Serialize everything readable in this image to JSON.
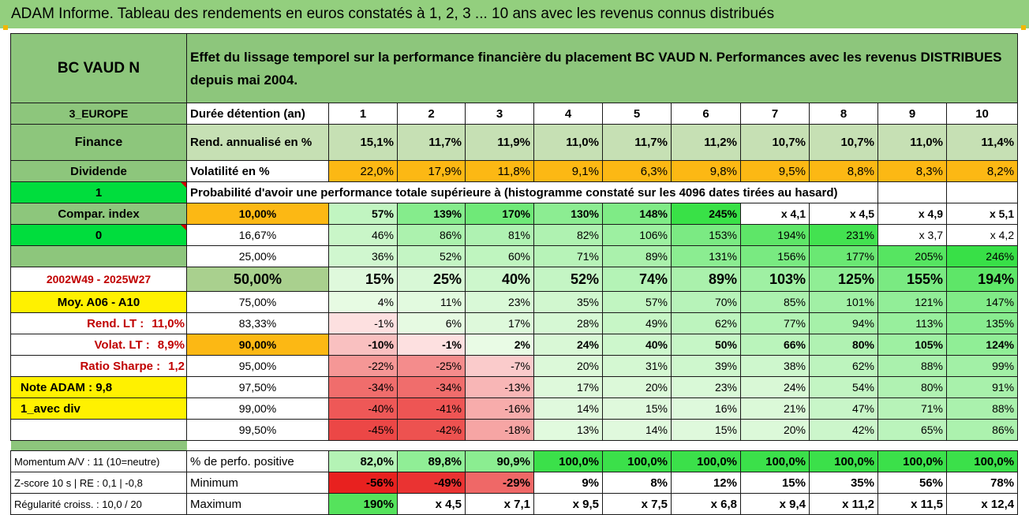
{
  "banner": "ADAM Informe. Tableau des rendements en euros constatés à 1, 2, 3 ... 10 ans avec les revenus connus distribués",
  "fund_name": "BC VAUD N",
  "description": "Effet du lissage temporel sur la performance financière du placement BC VAUD N. Performances avec les revenus DISTRIBUES depuis mai 2004.",
  "years": [
    "1",
    "2",
    "3",
    "4",
    "5",
    "6",
    "7",
    "8",
    "9",
    "10"
  ],
  "side_labels": {
    "region": "3_EUROPE",
    "sector": "Finance",
    "dividend": "Dividende",
    "flag1": "1",
    "compar": "Compar. index",
    "flag0": "0",
    "period": "2002W49 - 2025W27",
    "moy": "Moy. A06 - A10",
    "rend_lt_label": "Rend. LT :",
    "rend_lt_value": "11,0%",
    "volat_lt_label": "Volat. LT :",
    "volat_lt_value": "8,9%",
    "sharpe_label": "Ratio Sharpe :",
    "sharpe_value": "1,2",
    "note": "Note ADAM : 9,8",
    "div_note": "1_avec div"
  },
  "duree_label": "Durée détention (an)",
  "rend": {
    "label": "Rend. annualisé en %",
    "values": [
      "15,1%",
      "11,7%",
      "11,9%",
      "11,0%",
      "11,7%",
      "11,2%",
      "10,7%",
      "10,7%",
      "11,0%",
      "11,4%"
    ]
  },
  "vol": {
    "label": "Volatilité en %",
    "values": [
      "22,0%",
      "17,9%",
      "11,8%",
      "9,1%",
      "6,3%",
      "9,8%",
      "9,5%",
      "8,8%",
      "8,3%",
      "8,2%"
    ]
  },
  "prob_title": "Probabilité d'avoir une performance totale supérieure à (histogramme constaté sur les 4096 dates tirées au hasard)",
  "quantiles": [
    {
      "label": "10,00%",
      "values": [
        "57%",
        "139%",
        "170%",
        "130%",
        "148%",
        "245%",
        "x 4,1",
        "x 4,5",
        "x 4,9",
        "x 5,1"
      ]
    },
    {
      "label": "16,67%",
      "values": [
        "46%",
        "86%",
        "81%",
        "82%",
        "106%",
        "153%",
        "194%",
        "231%",
        "x 3,7",
        "x 4,2"
      ]
    },
    {
      "label": "25,00%",
      "values": [
        "36%",
        "52%",
        "60%",
        "71%",
        "89%",
        "131%",
        "156%",
        "177%",
        "205%",
        "246%"
      ]
    },
    {
      "label": "50,00%",
      "values": [
        "15%",
        "25%",
        "40%",
        "52%",
        "74%",
        "89%",
        "103%",
        "125%",
        "155%",
        "194%"
      ]
    },
    {
      "label": "75,00%",
      "values": [
        "4%",
        "11%",
        "23%",
        "35%",
        "57%",
        "70%",
        "85%",
        "101%",
        "121%",
        "147%"
      ]
    },
    {
      "label": "83,33%",
      "values": [
        "-1%",
        "6%",
        "17%",
        "28%",
        "49%",
        "62%",
        "77%",
        "94%",
        "113%",
        "135%"
      ]
    },
    {
      "label": "90,00%",
      "values": [
        "-10%",
        "-1%",
        "2%",
        "24%",
        "40%",
        "50%",
        "66%",
        "80%",
        "105%",
        "124%"
      ]
    },
    {
      "label": "95,00%",
      "values": [
        "-22%",
        "-25%",
        "-7%",
        "20%",
        "31%",
        "39%",
        "38%",
        "62%",
        "88%",
        "99%"
      ]
    },
    {
      "label": "97,50%",
      "values": [
        "-34%",
        "-34%",
        "-13%",
        "17%",
        "20%",
        "23%",
        "24%",
        "54%",
        "80%",
        "91%"
      ]
    },
    {
      "label": "99,00%",
      "values": [
        "-40%",
        "-41%",
        "-16%",
        "14%",
        "15%",
        "16%",
        "21%",
        "47%",
        "71%",
        "88%"
      ]
    },
    {
      "label": "99,50%",
      "values": [
        "-45%",
        "-42%",
        "-18%",
        "13%",
        "14%",
        "15%",
        "20%",
        "42%",
        "65%",
        "86%"
      ]
    }
  ],
  "bottom": [
    {
      "side": "Momentum A/V : 11 (10=neutre)",
      "label": "% de perfo. positive",
      "values": [
        "82,0%",
        "89,8%",
        "90,9%",
        "100,0%",
        "100,0%",
        "100,0%",
        "100,0%",
        "100,0%",
        "100,0%",
        "100,0%"
      ]
    },
    {
      "side": "Z-score 10 s | RE : 0,1 | -0,8",
      "label": "Minimum",
      "values": [
        "-56%",
        "-49%",
        "-29%",
        "9%",
        "8%",
        "12%",
        "15%",
        "35%",
        "56%",
        "78%"
      ]
    },
    {
      "side": "Régularité croiss. : 10,0 / 20",
      "label": "Maximum",
      "values": [
        "190%",
        "x 4,5",
        "x 7,1",
        "x 9,5",
        "x 7,5",
        "x 6,8",
        "x 9,4",
        "x 11,2",
        "x 11,5",
        "x 12,4"
      ]
    }
  ],
  "colors": {
    "banner": "#93cf7e",
    "header_green": "#8dc67c",
    "light_green": "#c6e0b4",
    "orange": "#fcb814",
    "bright_green": "#00dd3d",
    "yellow": "#fff100",
    "red_text": "#c00000"
  }
}
